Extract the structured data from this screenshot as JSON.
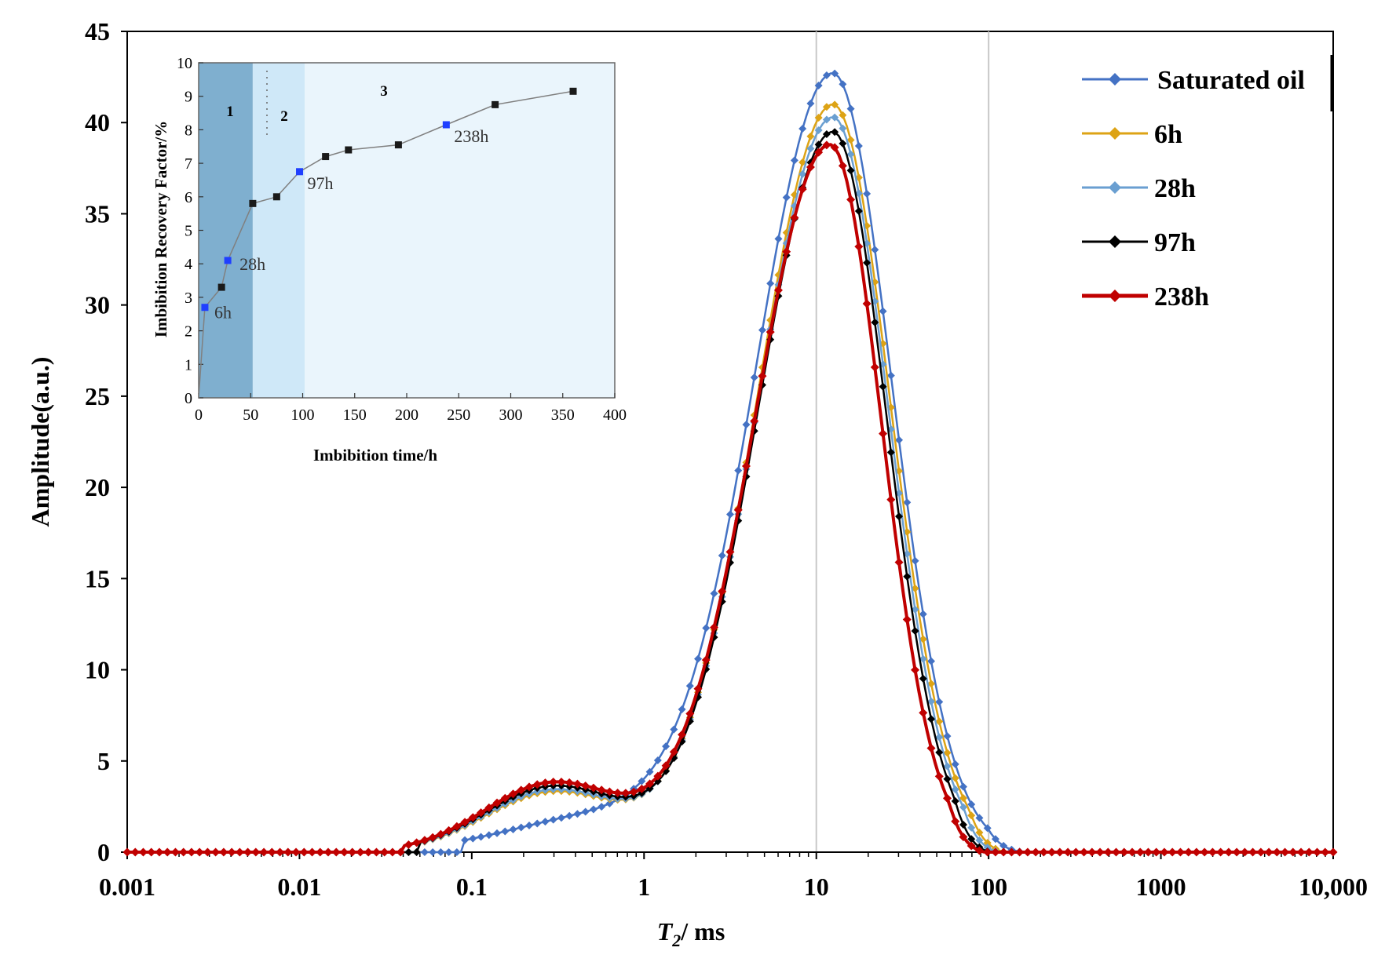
{
  "chart_data": {
    "type": "line",
    "title": "",
    "xlabel_italic": "T",
    "xlabel_sub": "2",
    "xlabel_rest": "/ ms",
    "ylabel": "Amplitude(a.u.)",
    "xscale": "log",
    "xlim": [
      0.001,
      10000
    ],
    "ylim": [
      0,
      45
    ],
    "x_ticks": [
      0.001,
      0.01,
      0.1,
      1,
      10,
      100,
      1000,
      10000
    ],
    "x_tick_labels": [
      "0.001",
      "0.01",
      "0.1",
      "1",
      "10",
      "100",
      "1000",
      "10,000"
    ],
    "y_ticks": [
      0,
      5,
      10,
      15,
      20,
      25,
      30,
      35,
      40,
      45
    ],
    "y_tick_labels": [
      "0",
      "5",
      "10",
      "15",
      "20",
      "25",
      "30",
      "35",
      "40",
      "45"
    ],
    "reference_lines_x": [
      10,
      100
    ],
    "legend_position": "top-right",
    "series": [
      {
        "name": "Saturated oil",
        "color": "#4472C4",
        "peak": 42.6,
        "peak_x": 12.5,
        "width_left": 0.45,
        "width_right": 0.34,
        "zero_after": 160,
        "shoulder": [
          0.6,
          2.0,
          0.55
        ],
        "shoulder_start": 0.09,
        "marker": "diamond",
        "stroke_width": 2.5
      },
      {
        "name": "6h",
        "color": "#DDA315",
        "peak": 41.0,
        "peak_x": 12.5,
        "width_left": 0.44,
        "width_right": 0.33,
        "zero_after": 125,
        "shoulder": [
          0.3,
          3.3,
          0.4
        ],
        "shoulder_start": 0.05,
        "marker": "diamond",
        "stroke_width": 2.5
      },
      {
        "name": "28h",
        "color": "#6A9FD1",
        "peak": 40.3,
        "peak_x": 12.5,
        "width_left": 0.44,
        "width_right": 0.32,
        "zero_after": 115,
        "shoulder": [
          0.3,
          3.4,
          0.4
        ],
        "shoulder_start": 0.05,
        "marker": "diamond",
        "stroke_width": 2.5
      },
      {
        "name": "97h",
        "color": "#000000",
        "peak": 39.5,
        "peak_x": 12.5,
        "width_left": 0.44,
        "width_right": 0.31,
        "zero_after": 102,
        "shoulder": [
          0.3,
          3.6,
          0.4
        ],
        "shoulder_start": 0.05,
        "marker": "diamond",
        "stroke_width": 2.5
      },
      {
        "name": "238h",
        "color": "#C00000",
        "peak": 38.8,
        "peak_x": 12.0,
        "width_left": 0.44,
        "width_right": 0.3,
        "zero_after": 95,
        "shoulder": [
          0.3,
          3.8,
          0.4
        ],
        "shoulder_start": 0.04,
        "marker": "diamond",
        "stroke_width": 4
      }
    ],
    "inset": {
      "type": "line",
      "xlabel": "Imbibition time/h",
      "ylabel": "Imbibition Recovery Factor/%",
      "xlim": [
        0,
        400
      ],
      "ylim": [
        0,
        10
      ],
      "x_ticks": [
        0,
        50,
        100,
        150,
        200,
        250,
        300,
        350,
        400
      ],
      "y_ticks": [
        0,
        1,
        2,
        3,
        4,
        5,
        6,
        7,
        8,
        9,
        10
      ],
      "regions": [
        {
          "label": "1",
          "from": 0,
          "to": 52,
          "color": "#7FAFCF"
        },
        {
          "label": "2",
          "from": 52,
          "to": 102,
          "color": "#CFE8F8"
        },
        {
          "label": "3",
          "from": 102,
          "to": 400,
          "color": "#EAF5FC"
        }
      ],
      "x": [
        0,
        6,
        22,
        28,
        52,
        75,
        97,
        122,
        144,
        192,
        238,
        285,
        360
      ],
      "y": [
        0,
        2.7,
        3.3,
        4.1,
        5.8,
        6.0,
        6.75,
        7.2,
        7.4,
        7.55,
        8.15,
        8.75,
        9.15
      ],
      "highlighted": [
        {
          "x": 6,
          "y": 2.7,
          "label": "6h"
        },
        {
          "x": 28,
          "y": 4.1,
          "label": "28h"
        },
        {
          "x": 97,
          "y": 6.75,
          "label": "97h"
        },
        {
          "x": 238,
          "y": 8.15,
          "label": "238h"
        }
      ],
      "line_color": "#808080",
      "marker_color": "#1a1a1a",
      "highlight_color": "#1f3fff"
    }
  }
}
